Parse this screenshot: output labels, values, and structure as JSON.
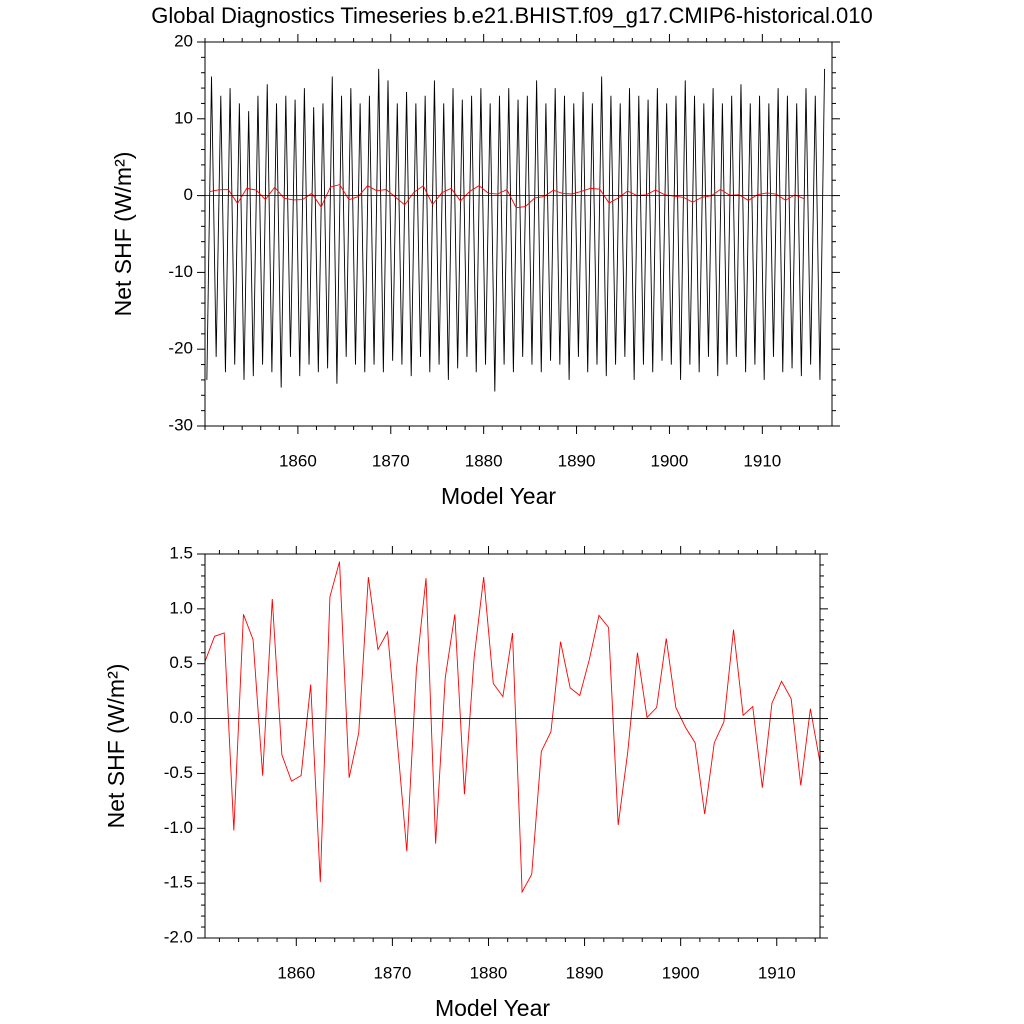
{
  "chart_data": [
    {
      "type": "line",
      "title": "Global Diagnostics Timeseries b.e21.BHIST.f09_g17.CMIP6-historical.010",
      "x_label": "Model Year",
      "y_label": "Net SHF (W/m²)",
      "xlim": [
        1850,
        1917.5
      ],
      "xticks": [
        1860,
        1870,
        1880,
        1890,
        1900,
        1910
      ],
      "ylim": [
        -30,
        20
      ],
      "yticks": [
        -30,
        -20,
        -10,
        0,
        10,
        20
      ],
      "hline": 0,
      "series": [
        {
          "color": "#000000",
          "x": [
            1850.2,
            1850.7,
            1851.2,
            1851.7,
            1852.2,
            1852.7,
            1853.2,
            1853.7,
            1854.2,
            1854.7,
            1855.2,
            1855.7,
            1856.2,
            1856.7,
            1857.2,
            1857.7,
            1858.2,
            1858.7,
            1859.2,
            1859.7,
            1860.2,
            1860.7,
            1861.2,
            1861.7,
            1862.2,
            1862.7,
            1863.2,
            1863.7,
            1864.2,
            1864.7,
            1865.2,
            1865.7,
            1866.2,
            1866.7,
            1867.2,
            1867.7,
            1868.2,
            1868.7,
            1869.2,
            1869.7,
            1870.2,
            1870.7,
            1871.2,
            1871.7,
            1872.2,
            1872.7,
            1873.2,
            1873.7,
            1874.2,
            1874.7,
            1875.2,
            1875.7,
            1876.2,
            1876.7,
            1877.2,
            1877.7,
            1878.2,
            1878.7,
            1879.2,
            1879.7,
            1880.2,
            1880.7,
            1881.2,
            1881.7,
            1882.2,
            1882.7,
            1883.2,
            1883.7,
            1884.2,
            1884.7,
            1885.2,
            1885.7,
            1886.2,
            1886.7,
            1887.2,
            1887.7,
            1888.2,
            1888.7,
            1889.2,
            1889.7,
            1890.2,
            1890.7,
            1891.2,
            1891.7,
            1892.2,
            1892.7,
            1893.2,
            1893.7,
            1894.2,
            1894.7,
            1895.2,
            1895.7,
            1896.2,
            1896.7,
            1897.2,
            1897.7,
            1898.2,
            1898.7,
            1899.2,
            1899.7,
            1900.2,
            1900.7,
            1901.2,
            1901.7,
            1902.2,
            1902.7,
            1903.2,
            1903.7,
            1904.2,
            1904.7,
            1905.2,
            1905.7,
            1906.2,
            1906.7,
            1907.2,
            1907.7,
            1908.2,
            1908.7,
            1909.2,
            1909.7,
            1910.2,
            1910.7,
            1911.2,
            1911.7,
            1912.2,
            1912.7,
            1913.2,
            1913.7,
            1914.2,
            1914.7,
            1915.2,
            1915.7,
            1916.2,
            1916.7
          ],
          "values": [
            -24,
            15.5,
            -21,
            13,
            -23,
            14,
            -22,
            12,
            -24,
            11,
            -23.5,
            13,
            -22,
            14.5,
            -23,
            12,
            -25,
            13,
            -21,
            12.5,
            -23.5,
            14,
            -22,
            11.5,
            -23,
            12,
            -22.5,
            15.5,
            -24.5,
            13,
            -21,
            14,
            -22,
            12,
            -23,
            13,
            -22,
            16.5,
            -23,
            15,
            -21.5,
            12,
            -22,
            13.5,
            -23.5,
            12,
            -21,
            13,
            -23,
            15,
            -22,
            12,
            -24,
            14,
            -22.5,
            12.5,
            -21,
            13,
            -23,
            14,
            -22,
            12,
            -25.5,
            13,
            -22,
            14,
            -23,
            12.5,
            -21,
            13,
            -22,
            15,
            -23,
            12,
            -21.5,
            14,
            -22,
            13,
            -24,
            12,
            -21,
            13.5,
            -23,
            12,
            -22,
            15.5,
            -23.5,
            13,
            -22,
            12,
            -21,
            14,
            -24,
            13,
            -22,
            12.5,
            -23,
            14,
            -21.5,
            12,
            -22,
            13,
            -24,
            15,
            -22,
            13,
            -23,
            12,
            -21,
            14,
            -23.5,
            12,
            -22,
            13,
            -21,
            14.5,
            -23,
            12,
            -22,
            13,
            -24,
            12,
            -21,
            14,
            -23,
            13,
            -22.5,
            12,
            -23.5,
            14,
            -22,
            13,
            -24,
            16.5
          ]
        },
        {
          "color": "#ff0000",
          "x": [
            1850.5,
            1851.5,
            1852.5,
            1853.5,
            1854.5,
            1855.5,
            1856.5,
            1857.5,
            1858.5,
            1859.5,
            1860.5,
            1861.5,
            1862.5,
            1863.5,
            1864.5,
            1865.5,
            1866.5,
            1867.5,
            1868.5,
            1869.5,
            1870.5,
            1871.5,
            1872.5,
            1873.5,
            1874.5,
            1875.5,
            1876.5,
            1877.5,
            1878.5,
            1879.5,
            1880.5,
            1881.5,
            1882.5,
            1883.5,
            1884.5,
            1885.5,
            1886.5,
            1887.5,
            1888.5,
            1889.5,
            1890.5,
            1891.5,
            1892.5,
            1893.5,
            1894.5,
            1895.5,
            1896.5,
            1897.5,
            1898.5,
            1899.5,
            1900.5,
            1901.5,
            1902.5,
            1903.5,
            1904.5,
            1905.5,
            1906.5,
            1907.5,
            1908.5,
            1909.5,
            1910.5,
            1911.5,
            1912.5,
            1913.5,
            1914.5
          ],
          "values": [
            0.52,
            0.75,
            0.78,
            -1.02,
            0.95,
            0.72,
            -0.52,
            1.09,
            -0.33,
            -0.57,
            -0.52,
            0.31,
            -1.49,
            1.11,
            1.43,
            -0.54,
            -0.13,
            1.29,
            0.63,
            0.79,
            -0.2,
            -1.21,
            0.45,
            1.28,
            -1.14,
            0.37,
            0.95,
            -0.69,
            0.55,
            1.29,
            0.32,
            0.2,
            0.78,
            -1.58,
            -1.42,
            -0.3,
            -0.12,
            0.7,
            0.28,
            0.21,
            0.54,
            0.94,
            0.83,
            -0.97,
            -0.3,
            0.6,
            0.01,
            0.1,
            0.73,
            0.1,
            -0.08,
            -0.22,
            -0.87,
            -0.22,
            -0.03,
            0.81,
            0.03,
            0.11,
            -0.63,
            0.14,
            0.34,
            0.18,
            -0.61,
            0.09,
            -0.4
          ]
        }
      ]
    },
    {
      "type": "line",
      "x_label": "Model Year",
      "y_label": "Net SHF (W/m²)",
      "xlim": [
        1850.5,
        1914.5
      ],
      "xticks": [
        1860,
        1870,
        1880,
        1890,
        1900,
        1910
      ],
      "ylim": [
        -2.0,
        1.5
      ],
      "yticks": [
        {
          "value": -2.0,
          "label": "-2.0"
        },
        -1.5,
        {
          "value": -1.0,
          "label": "-1.0"
        },
        -0.5,
        {
          "value": 0.0,
          "label": "0.0"
        },
        0.5,
        {
          "value": 1.0,
          "label": "1.0"
        },
        1.5
      ],
      "hline": 0,
      "series": [
        {
          "color": "#ff0000",
          "x": [
            1850.5,
            1851.5,
            1852.5,
            1853.5,
            1854.5,
            1855.5,
            1856.5,
            1857.5,
            1858.5,
            1859.5,
            1860.5,
            1861.5,
            1862.5,
            1863.5,
            1864.5,
            1865.5,
            1866.5,
            1867.5,
            1868.5,
            1869.5,
            1870.5,
            1871.5,
            1872.5,
            1873.5,
            1874.5,
            1875.5,
            1876.5,
            1877.5,
            1878.5,
            1879.5,
            1880.5,
            1881.5,
            1882.5,
            1883.5,
            1884.5,
            1885.5,
            1886.5,
            1887.5,
            1888.5,
            1889.5,
            1890.5,
            1891.5,
            1892.5,
            1893.5,
            1894.5,
            1895.5,
            1896.5,
            1897.5,
            1898.5,
            1899.5,
            1900.5,
            1901.5,
            1902.5,
            1903.5,
            1904.5,
            1905.5,
            1906.5,
            1907.5,
            1908.5,
            1909.5,
            1910.5,
            1911.5,
            1912.5,
            1913.5,
            1914.5
          ],
          "values": [
            0.52,
            0.75,
            0.78,
            -1.02,
            0.95,
            0.72,
            -0.52,
            1.09,
            -0.33,
            -0.57,
            -0.52,
            0.31,
            -1.49,
            1.11,
            1.43,
            -0.54,
            -0.13,
            1.29,
            0.63,
            0.79,
            -0.2,
            -1.21,
            0.45,
            1.28,
            -1.14,
            0.37,
            0.95,
            -0.69,
            0.55,
            1.29,
            0.32,
            0.2,
            0.78,
            -1.58,
            -1.42,
            -0.3,
            -0.12,
            0.7,
            0.28,
            0.21,
            0.54,
            0.94,
            0.83,
            -0.97,
            -0.3,
            0.6,
            0.01,
            0.1,
            0.73,
            0.1,
            -0.08,
            -0.22,
            -0.87,
            -0.22,
            -0.03,
            0.81,
            0.03,
            0.11,
            -0.63,
            0.14,
            0.34,
            0.18,
            -0.61,
            0.09,
            -0.4
          ]
        }
      ]
    }
  ]
}
